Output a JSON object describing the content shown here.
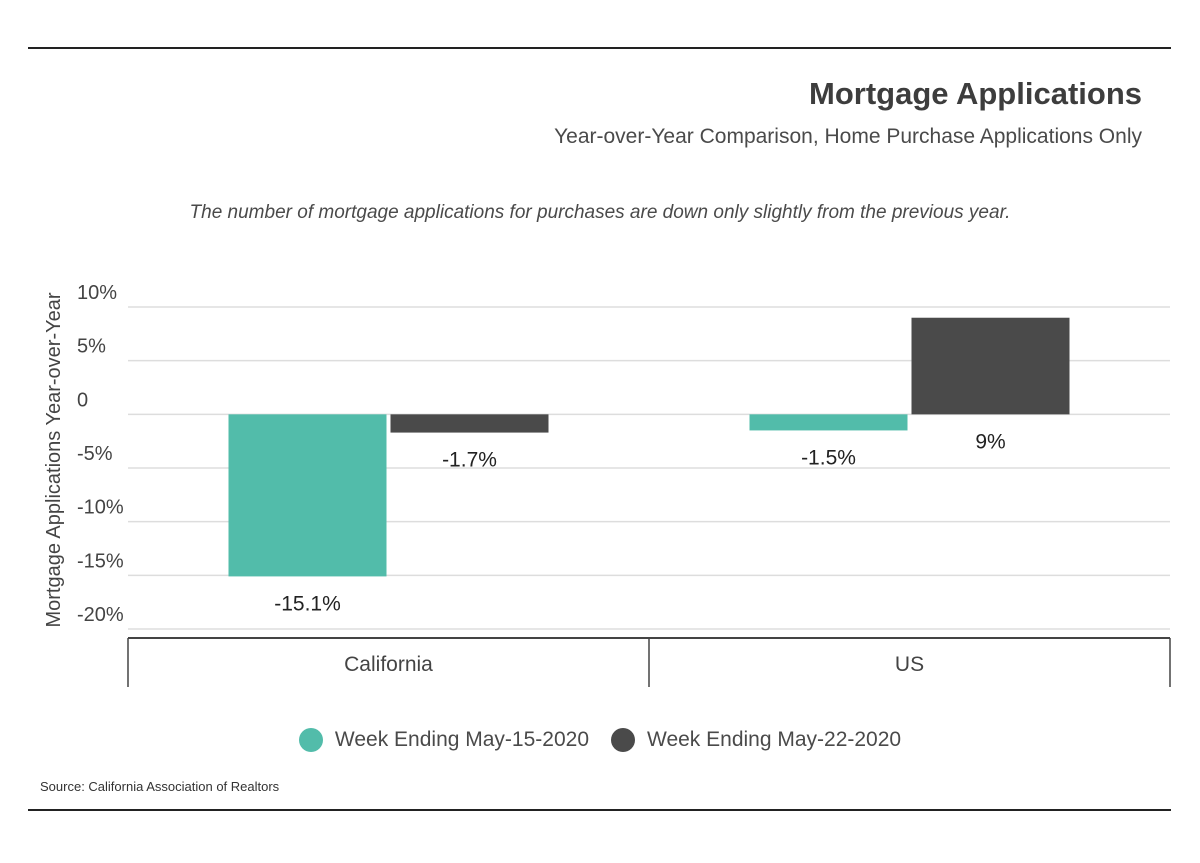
{
  "chart_data": {
    "type": "bar",
    "title": "Mortgage Applications",
    "subtitle": "Year-over-Year Comparison, Home Purchase Applications Only",
    "annotation": "The number of mortgage applications for purchases are down only slightly from the previous year.",
    "ylabel": "Mortgage Applications Year-over-Year",
    "xlabel": "",
    "categories": [
      "California",
      "US"
    ],
    "ylim": [
      -20,
      10
    ],
    "yticks": [
      10,
      5,
      0,
      -5,
      -10,
      -15,
      -20
    ],
    "ytick_labels": [
      "10%",
      "5%",
      "0",
      "-5%",
      "-10%",
      "-15%",
      "-20%"
    ],
    "series": [
      {
        "name": "Week Ending May-15-2020",
        "color": "#52bcaa",
        "values": [
          -15.1,
          -1.5
        ],
        "labels": [
          "-15.1%",
          "-1.5%"
        ]
      },
      {
        "name": "Week Ending May-22-2020",
        "color": "#4a4a4a",
        "values": [
          -1.7,
          9
        ],
        "labels": [
          "-1.7%",
          "9%"
        ]
      }
    ],
    "grid": true,
    "legend": "bottom-center",
    "source": "Source:  California Association of Realtors"
  }
}
